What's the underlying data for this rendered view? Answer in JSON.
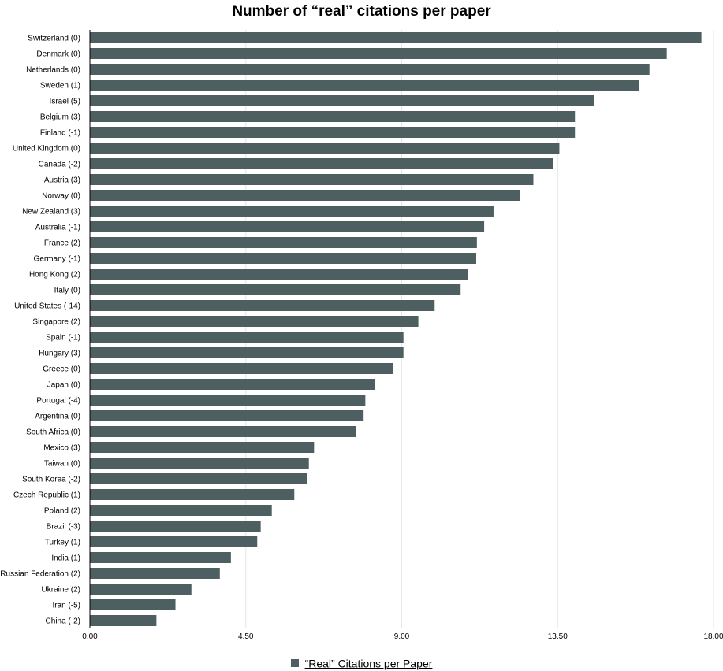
{
  "chart_data": {
    "type": "bar",
    "orientation": "horizontal",
    "title": "Number of “real” citations per paper",
    "xlabel": "",
    "ylabel": "",
    "xlim": [
      0,
      18
    ],
    "xticks": [
      "0.00",
      "4.50",
      "9.00",
      "13.50",
      "18.00"
    ],
    "xtick_values": [
      0,
      4.5,
      9,
      13.5,
      18
    ],
    "grid": "vertical",
    "legend_position": "bottom-center",
    "bar_color": "#4d5f60",
    "categories": [
      "Switzerland (0)",
      "Denmark (0)",
      "Netherlands (0)",
      "Sweden (1)",
      "Israel (5)",
      "Belgium (3)",
      "Finland (-1)",
      "United Kingdom (0)",
      "Canada (-2)",
      "Austria (3)",
      "Norway (0)",
      "New Zealand (3)",
      "Australia (-1)",
      "France (2)",
      "Germany (-1)",
      "Hong Kong (2)",
      "Italy (0)",
      "United States (-14)",
      "Singapore (2)",
      "Spain (-1)",
      "Hungary (3)",
      "Greece (0)",
      "Japan (0)",
      "Portugal (-4)",
      "Argentina (0)",
      "South Africa (0)",
      "Mexico (3)",
      "Taiwan (0)",
      "South Korea (-2)",
      "Czech Republic (1)",
      "Poland (2)",
      "Brazil (-3)",
      "Turkey (1)",
      "India (1)",
      "Russian Federation (2)",
      "Ukraine (2)",
      "Iran (-5)",
      "China (-2)"
    ],
    "series": [
      {
        "name": "“Real” Citations per Paper",
        "values": [
          17.65,
          16.65,
          16.15,
          15.85,
          14.55,
          14.0,
          14.0,
          13.55,
          13.37,
          12.8,
          12.42,
          11.65,
          11.38,
          11.17,
          11.15,
          10.9,
          10.7,
          9.95,
          9.48,
          9.05,
          9.05,
          8.75,
          8.22,
          7.95,
          7.9,
          7.68,
          6.47,
          6.32,
          6.28,
          5.9,
          5.25,
          4.93,
          4.83,
          4.07,
          3.75,
          2.93,
          2.47,
          1.92
        ]
      }
    ]
  }
}
